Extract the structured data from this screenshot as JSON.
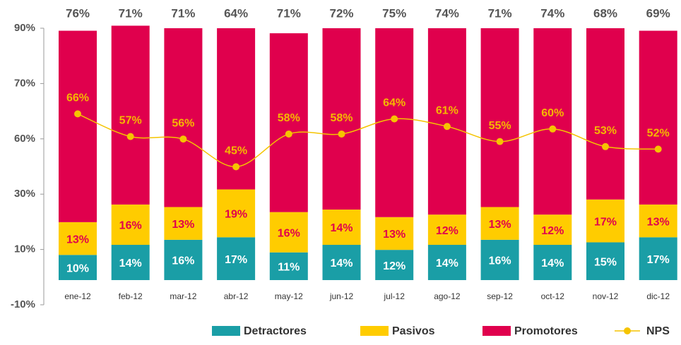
{
  "chart_data": {
    "type": "stacked_bar_line",
    "categories": [
      "ene-12",
      "feb-12",
      "mar-12",
      "abr-12",
      "may-12",
      "jun-12",
      "jul-12",
      "ago-12",
      "sep-12",
      "oct-12",
      "nov-12",
      "dic-12"
    ],
    "y_axis_labels": [
      "90%",
      "70%",
      "60%",
      "30%",
      "10%",
      "-10%"
    ],
    "ylim": [
      0,
      100
    ],
    "series": [
      {
        "name": "Detractores",
        "color": "#1a9ea6",
        "values": [
          10,
          14,
          16,
          17,
          11,
          14,
          12,
          14,
          16,
          14,
          15,
          17
        ],
        "value_labels": [
          "10%",
          "14%",
          "16%",
          "17%",
          "11%",
          "14%",
          "12%",
          "14%",
          "16%",
          "14%",
          "15%",
          "17%"
        ]
      },
      {
        "name": "Pasivos",
        "color": "#ffcc00",
        "values": [
          13,
          16,
          13,
          19,
          16,
          14,
          13,
          12,
          13,
          12,
          17,
          13
        ],
        "value_labels": [
          "13%",
          "16%",
          "13%",
          "19%",
          "16%",
          "14%",
          "13%",
          "12%",
          "13%",
          "12%",
          "17%",
          "13%"
        ]
      },
      {
        "name": "Promotores",
        "color": "#e0004d",
        "values": [
          76,
          71,
          71,
          64,
          71,
          72,
          75,
          74,
          71,
          74,
          68,
          69
        ],
        "value_labels": [
          "76%",
          "71%",
          "71%",
          "64%",
          "71%",
          "72%",
          "75%",
          "74%",
          "71%",
          "74%",
          "68%",
          "69%"
        ]
      },
      {
        "name": "NPS",
        "type": "line",
        "color": "#f5c400",
        "values": [
          66,
          57,
          56,
          45,
          58,
          58,
          64,
          61,
          55,
          60,
          53,
          52
        ],
        "value_labels": [
          "66%",
          "57%",
          "56%",
          "45%",
          "58%",
          "58%",
          "64%",
          "61%",
          "55%",
          "60%",
          "53%",
          "52%"
        ]
      }
    ]
  }
}
